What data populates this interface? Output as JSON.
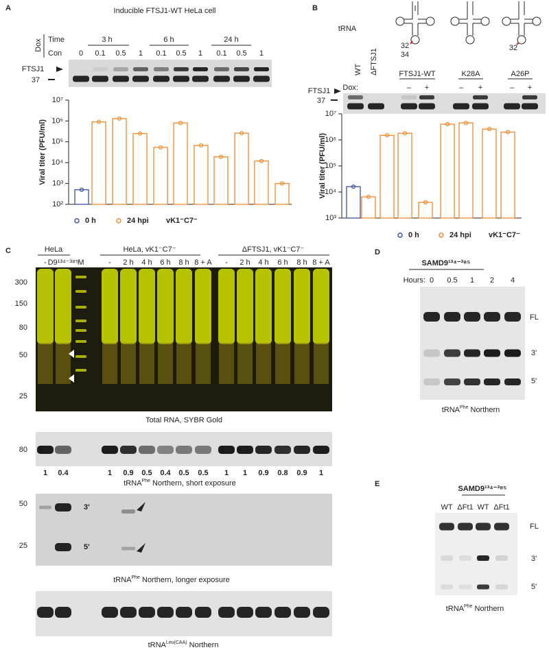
{
  "panel_labels": [
    "A",
    "B",
    "C",
    "D",
    "E"
  ],
  "panel_a": {
    "title": "Inducible FTSJ1-WT HeLa cell",
    "dox": "Dox",
    "time": "Time",
    "con": "Con",
    "times": [
      "3 h",
      "6 h",
      "24 h"
    ],
    "lanes": [
      "0",
      "0.1",
      "0.5",
      "1",
      "0.1",
      "0.5",
      "1",
      "0.1",
      "0.5",
      "1"
    ],
    "markers": [
      "FTSJ1",
      "37"
    ]
  },
  "panel_b": {
    "trna": "tRNA",
    "sites": [
      "32",
      "34",
      "32"
    ],
    "lanes": [
      "WT",
      "ΔFTSJ1"
    ],
    "groups": [
      "FTSJ1-WT",
      "K28A",
      "A26P"
    ],
    "dox": "Dox:",
    "dox_states": [
      "–",
      "+"
    ],
    "markers": [
      "FTSJ1",
      "37"
    ]
  },
  "panel_c": {
    "groups": [
      "HeLa",
      "HeLa, vK1⁻C7⁻",
      "ΔFTSJ1, vK1⁻C7⁻"
    ],
    "hela_lanes": [
      "-",
      "D9¹³⁴⁻³⁸⁵",
      "M"
    ],
    "time_lanes": [
      "-",
      "2 h",
      "4 h",
      "6 h",
      "8 h",
      "8 + A"
    ],
    "size_markers": [
      "300",
      "150",
      "80",
      "50",
      "25"
    ],
    "gel1_caption": "Total RNA, SYBR Gold",
    "gel2_marker": "80",
    "gel2_quant": [
      "1",
      "0.4",
      "1",
      "0.9",
      "0.5",
      "0.4",
      "0.5",
      "0.5",
      "1",
      "1",
      "0.9",
      "0.8",
      "0.9",
      "1"
    ],
    "gel2_caption": {
      "text": "tRNA",
      "sup": "Phe",
      "after": " Northern, short exposure"
    },
    "gel3_markers": [
      "50",
      "25"
    ],
    "gel3_fragments": [
      "3'",
      "5'"
    ],
    "gel3_caption": {
      "text": "tRNA",
      "sup": "Phe",
      "after": " Northern, longer exposure"
    },
    "gel4_caption": {
      "text": "tRNA",
      "sup": "Leu(CAA)",
      "after": " Northern"
    }
  },
  "panel_d": {
    "enzyme": "SAMD9¹³⁴⁻³⁸⁵",
    "hours_label": "Hours:",
    "hours": [
      "0",
      "0.5",
      "1",
      "2",
      "4"
    ],
    "bands": [
      "FL",
      "3'",
      "5'"
    ],
    "caption": {
      "text": "tRNA",
      "sup": "Phe",
      "after": " Northern"
    }
  },
  "panel_e": {
    "enzyme": "SAMD9¹³⁴⁻³⁸⁵",
    "lanes": [
      "WT",
      "ΔFt1",
      "WT",
      "ΔFt1"
    ],
    "bands": [
      "FL",
      "3'",
      "5'"
    ],
    "caption": {
      "text": "tRNA",
      "sup": "Phe",
      "after": " Northern"
    }
  },
  "chart_data": [
    {
      "type": "bar",
      "ylabel": "Viral titer (PFU/ml)",
      "log": true,
      "ylim": [
        100,
        10000000
      ],
      "yticks": [
        {
          "value": 100,
          "label": "10²"
        },
        {
          "value": 1000,
          "label": "10³"
        },
        {
          "value": 10000,
          "label": "10⁴"
        },
        {
          "value": 100000,
          "label": "10⁵"
        },
        {
          "value": 1000000,
          "label": "10⁶"
        },
        {
          "value": 10000000,
          "label": "10⁷"
        }
      ],
      "categories": [
        null,
        null,
        null,
        null,
        null,
        null,
        null,
        null,
        null,
        null,
        null
      ],
      "series": [
        {
          "name": "0 h",
          "color": "#3a4ea0",
          "values": [
            500,
            null,
            null,
            null,
            null,
            null,
            null,
            null,
            null,
            null,
            null
          ]
        },
        {
          "name": "24 hpi",
          "color": "#f0892a",
          "values": [
            null,
            900000,
            1300000,
            250000,
            54000,
            800000,
            67000,
            19000,
            260000,
            12000,
            1000
          ]
        }
      ],
      "annotation": "vK1⁻C7⁻"
    },
    {
      "type": "bar",
      "ylabel": "Viral titer (PFU/ml)",
      "log": true,
      "ylim": [
        1000,
        10000000
      ],
      "yticks": [
        {
          "value": 1000,
          "label": "10³"
        },
        {
          "value": 10000,
          "label": "10⁴"
        },
        {
          "value": 100000,
          "label": "10⁵"
        },
        {
          "value": 1000000,
          "label": "10⁶"
        },
        {
          "value": 10000000,
          "label": "10⁷"
        }
      ],
      "categories": [
        null,
        null,
        null,
        null,
        null,
        null,
        null,
        null,
        null
      ],
      "series": [
        {
          "name": "0 h",
          "color": "#3a4ea0",
          "values": [
            16000,
            null,
            null,
            null,
            null,
            null,
            null,
            null,
            null
          ]
        },
        {
          "name": "24 hpi",
          "color": "#f0892a",
          "values": [
            null,
            6500,
            1500000,
            1800000,
            4000,
            4000000,
            4500000,
            2600000,
            2000000
          ]
        }
      ],
      "annotation": "vK1⁻C7⁻"
    }
  ]
}
